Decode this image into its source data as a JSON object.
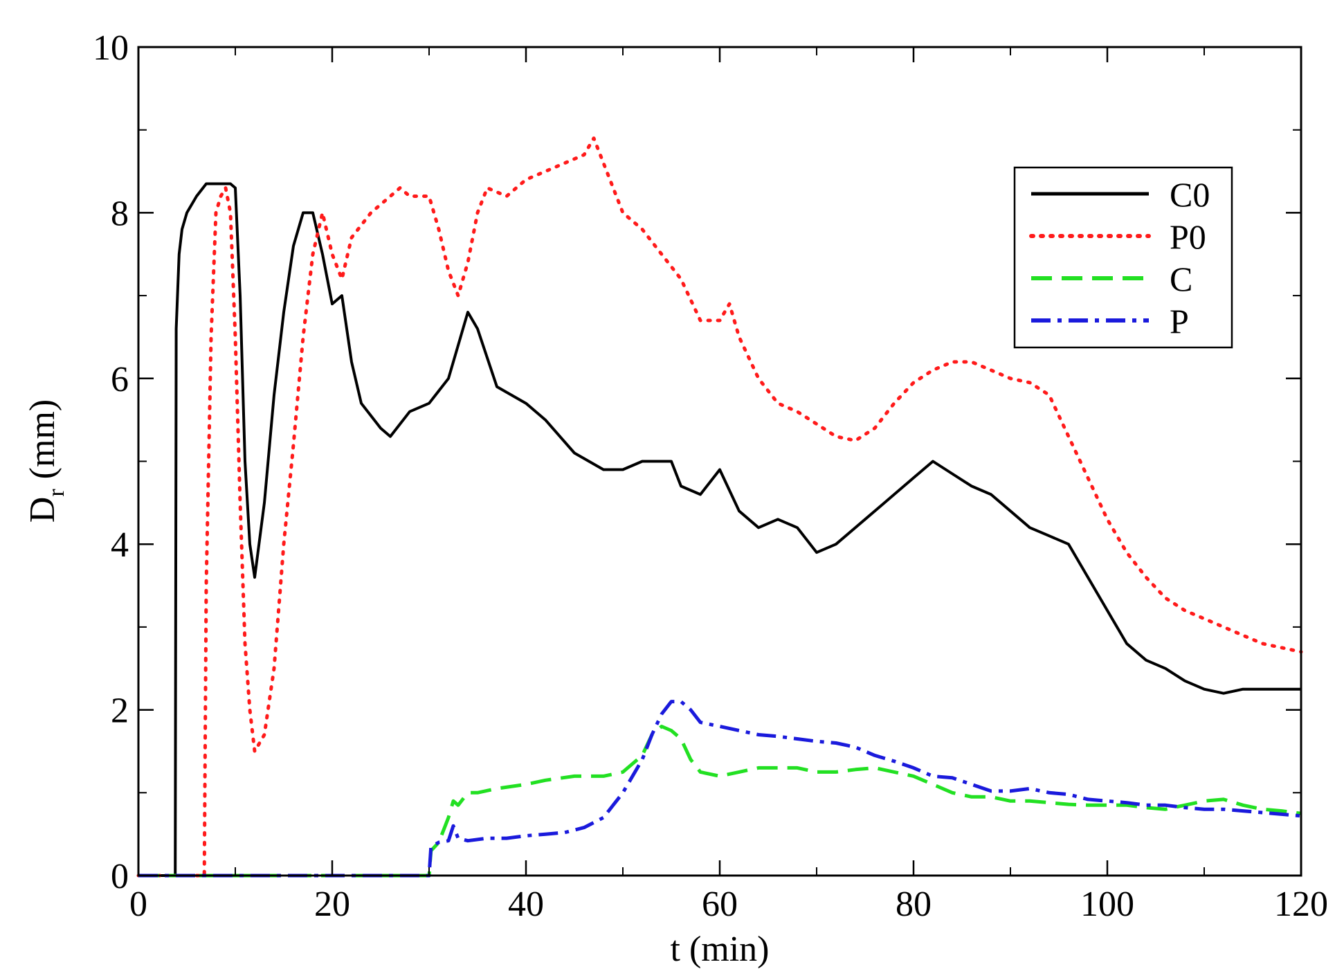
{
  "chart_data": {
    "type": "line",
    "title": "",
    "xlabel": "t (min)",
    "ylabel_main": "D",
    "ylabel_sub": "r",
    "ylabel_unit": "(mm)",
    "xlim": [
      0,
      120
    ],
    "ylim": [
      0,
      10
    ],
    "xticks": [
      0,
      20,
      40,
      60,
      80,
      100,
      120
    ],
    "xtick_labels": [
      "0",
      "20",
      "40",
      "60",
      "80",
      "100",
      "120"
    ],
    "yticks": [
      0,
      2,
      4,
      6,
      8,
      10
    ],
    "ytick_labels": [
      "0",
      "2",
      "4",
      "6",
      "8",
      "10"
    ],
    "grid": false,
    "legend_position": "top-right",
    "series": [
      {
        "name": "C0",
        "color": "#000000",
        "style": "solid",
        "x": [
          0,
          3.8,
          3.9,
          4.2,
          4.5,
          5,
          6,
          7,
          8,
          9,
          9.5,
          10,
          10.5,
          11,
          11.5,
          12,
          13,
          14,
          15,
          16,
          17,
          18,
          19,
          20,
          21,
          22,
          23,
          25,
          26,
          28,
          30,
          32,
          34,
          35,
          37,
          40,
          42,
          45,
          48,
          50,
          52,
          54,
          55,
          56,
          58,
          60,
          62,
          64,
          66,
          68,
          70,
          72,
          75,
          78,
          80,
          82,
          84,
          86,
          88,
          90,
          92,
          94,
          96,
          98,
          100,
          102,
          104,
          106,
          108,
          110,
          112,
          114,
          116,
          118,
          120
        ],
        "y": [
          0,
          0,
          6.6,
          7.5,
          7.8,
          8.0,
          8.2,
          8.35,
          8.35,
          8.35,
          8.35,
          8.3,
          7.0,
          5.0,
          4.0,
          3.6,
          4.5,
          5.8,
          6.8,
          7.6,
          8.0,
          8.0,
          7.5,
          6.9,
          7.0,
          6.2,
          5.7,
          5.4,
          5.3,
          5.6,
          5.7,
          6.0,
          6.8,
          6.6,
          5.9,
          5.7,
          5.5,
          5.1,
          4.9,
          4.9,
          5.0,
          5.0,
          5.0,
          4.7,
          4.6,
          4.9,
          4.4,
          4.2,
          4.3,
          4.2,
          3.9,
          4.0,
          4.3,
          4.6,
          4.8,
          5.0,
          4.85,
          4.7,
          4.6,
          4.4,
          4.2,
          4.1,
          4.0,
          3.6,
          3.2,
          2.8,
          2.6,
          2.5,
          2.35,
          2.25,
          2.2,
          2.25,
          2.25,
          2.25,
          2.25
        ]
      },
      {
        "name": "P0",
        "color": "#ff1a1a",
        "style": "dotted",
        "x": [
          0,
          6.8,
          7.0,
          7.5,
          8,
          8.5,
          9,
          9.5,
          10,
          10.5,
          11,
          11.5,
          12,
          13,
          14,
          15,
          16,
          17,
          18,
          19,
          20,
          21,
          22,
          24,
          26,
          27,
          28,
          30,
          31,
          32,
          33,
          34,
          35,
          36,
          38,
          40,
          42,
          44,
          46,
          47,
          48,
          50,
          52,
          54,
          56,
          58,
          60,
          61,
          62,
          64,
          66,
          68,
          70,
          72,
          74,
          76,
          78,
          80,
          82,
          84,
          86,
          88,
          90,
          92,
          94,
          96,
          98,
          100,
          102,
          104,
          106,
          108,
          110,
          112,
          114,
          116,
          118,
          120
        ],
        "y": [
          0,
          0,
          3.5,
          6.5,
          8.0,
          8.2,
          8.3,
          8.0,
          6.5,
          4.5,
          2.8,
          2.0,
          1.5,
          1.7,
          2.5,
          4.0,
          5.2,
          6.5,
          7.5,
          8.0,
          7.5,
          7.2,
          7.7,
          8.0,
          8.2,
          8.3,
          8.2,
          8.2,
          7.8,
          7.3,
          7.0,
          7.4,
          8.0,
          8.3,
          8.2,
          8.4,
          8.5,
          8.6,
          8.7,
          8.9,
          8.6,
          8.0,
          7.8,
          7.5,
          7.2,
          6.7,
          6.7,
          6.9,
          6.5,
          6.0,
          5.7,
          5.6,
          5.45,
          5.3,
          5.25,
          5.4,
          5.7,
          5.95,
          6.1,
          6.2,
          6.2,
          6.1,
          6.0,
          5.95,
          5.8,
          5.3,
          4.8,
          4.3,
          3.9,
          3.6,
          3.35,
          3.2,
          3.1,
          3.0,
          2.9,
          2.8,
          2.75,
          2.7
        ]
      },
      {
        "name": "C",
        "color": "#22e022",
        "style": "dashed",
        "x": [
          0,
          30,
          30.2,
          31,
          32,
          32.5,
          33,
          34,
          35,
          37,
          40,
          42,
          45,
          48,
          50,
          52,
          53,
          54,
          55,
          56,
          57,
          58,
          60,
          62,
          64,
          66,
          68,
          70,
          72,
          74,
          76,
          78,
          80,
          82,
          84,
          86,
          88,
          90,
          92,
          94,
          96,
          98,
          100,
          102,
          104,
          106,
          108,
          110,
          112,
          114,
          116,
          118,
          120
        ],
        "y": [
          0,
          0,
          0.3,
          0.4,
          0.7,
          0.9,
          0.85,
          1.0,
          1.0,
          1.05,
          1.1,
          1.15,
          1.2,
          1.2,
          1.25,
          1.45,
          1.7,
          1.8,
          1.75,
          1.65,
          1.4,
          1.25,
          1.2,
          1.25,
          1.3,
          1.3,
          1.3,
          1.25,
          1.25,
          1.28,
          1.3,
          1.25,
          1.2,
          1.1,
          1.0,
          0.95,
          0.95,
          0.9,
          0.9,
          0.88,
          0.86,
          0.85,
          0.85,
          0.85,
          0.82,
          0.8,
          0.85,
          0.9,
          0.92,
          0.85,
          0.8,
          0.78,
          0.75
        ]
      },
      {
        "name": "P",
        "color": "#1a1adc",
        "style": "dashdot",
        "x": [
          0,
          30,
          30.2,
          31,
          32,
          32.5,
          33,
          34,
          36,
          38,
          40,
          42,
          44,
          46,
          48,
          50,
          52,
          53,
          54,
          55,
          56,
          57,
          58,
          60,
          62,
          64,
          66,
          68,
          70,
          72,
          74,
          76,
          78,
          80,
          82,
          84,
          86,
          88,
          90,
          92,
          94,
          96,
          98,
          100,
          102,
          104,
          106,
          108,
          110,
          112,
          114,
          116,
          118,
          120
        ],
        "y": [
          0,
          0,
          0.35,
          0.4,
          0.42,
          0.6,
          0.45,
          0.42,
          0.45,
          0.45,
          0.48,
          0.5,
          0.52,
          0.58,
          0.7,
          1.0,
          1.4,
          1.7,
          1.95,
          2.1,
          2.1,
          2.0,
          1.85,
          1.8,
          1.75,
          1.7,
          1.68,
          1.65,
          1.62,
          1.6,
          1.55,
          1.45,
          1.38,
          1.3,
          1.2,
          1.18,
          1.1,
          1.02,
          1.02,
          1.05,
          1.0,
          0.98,
          0.92,
          0.9,
          0.88,
          0.85,
          0.85,
          0.82,
          0.8,
          0.8,
          0.78,
          0.76,
          0.74,
          0.72
        ]
      }
    ]
  }
}
